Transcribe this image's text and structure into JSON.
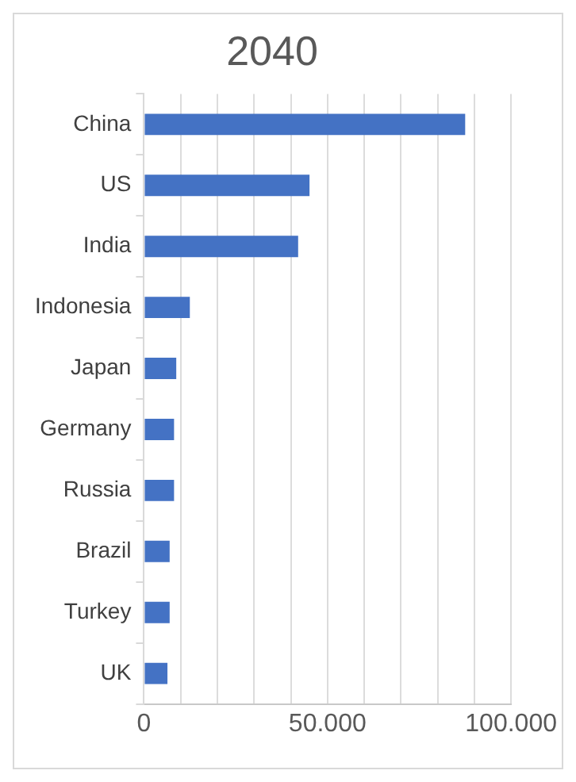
{
  "chart_data": {
    "type": "bar",
    "orientation": "horizontal",
    "title": "2040",
    "categories": [
      "China",
      "US",
      "India",
      "Indonesia",
      "Japan",
      "Germany",
      "Russia",
      "Brazil",
      "Turkey",
      "UK"
    ],
    "values": [
      87500,
      45100,
      42000,
      12500,
      8800,
      8200,
      8200,
      7000,
      7000,
      6400
    ],
    "color": "#4472c4",
    "xlim": [
      0,
      100000
    ],
    "xticks": [
      {
        "value": 0,
        "label": "0"
      },
      {
        "value": 10000,
        "label": null
      },
      {
        "value": 20000,
        "label": null
      },
      {
        "value": 30000,
        "label": null
      },
      {
        "value": 40000,
        "label": null
      },
      {
        "value": 50000,
        "label": "50.000"
      },
      {
        "value": 60000,
        "label": null
      },
      {
        "value": 70000,
        "label": null
      },
      {
        "value": 80000,
        "label": null
      },
      {
        "value": 90000,
        "label": null
      },
      {
        "value": 100000,
        "label": "100.000"
      }
    ],
    "grid": "x",
    "legend": false
  }
}
